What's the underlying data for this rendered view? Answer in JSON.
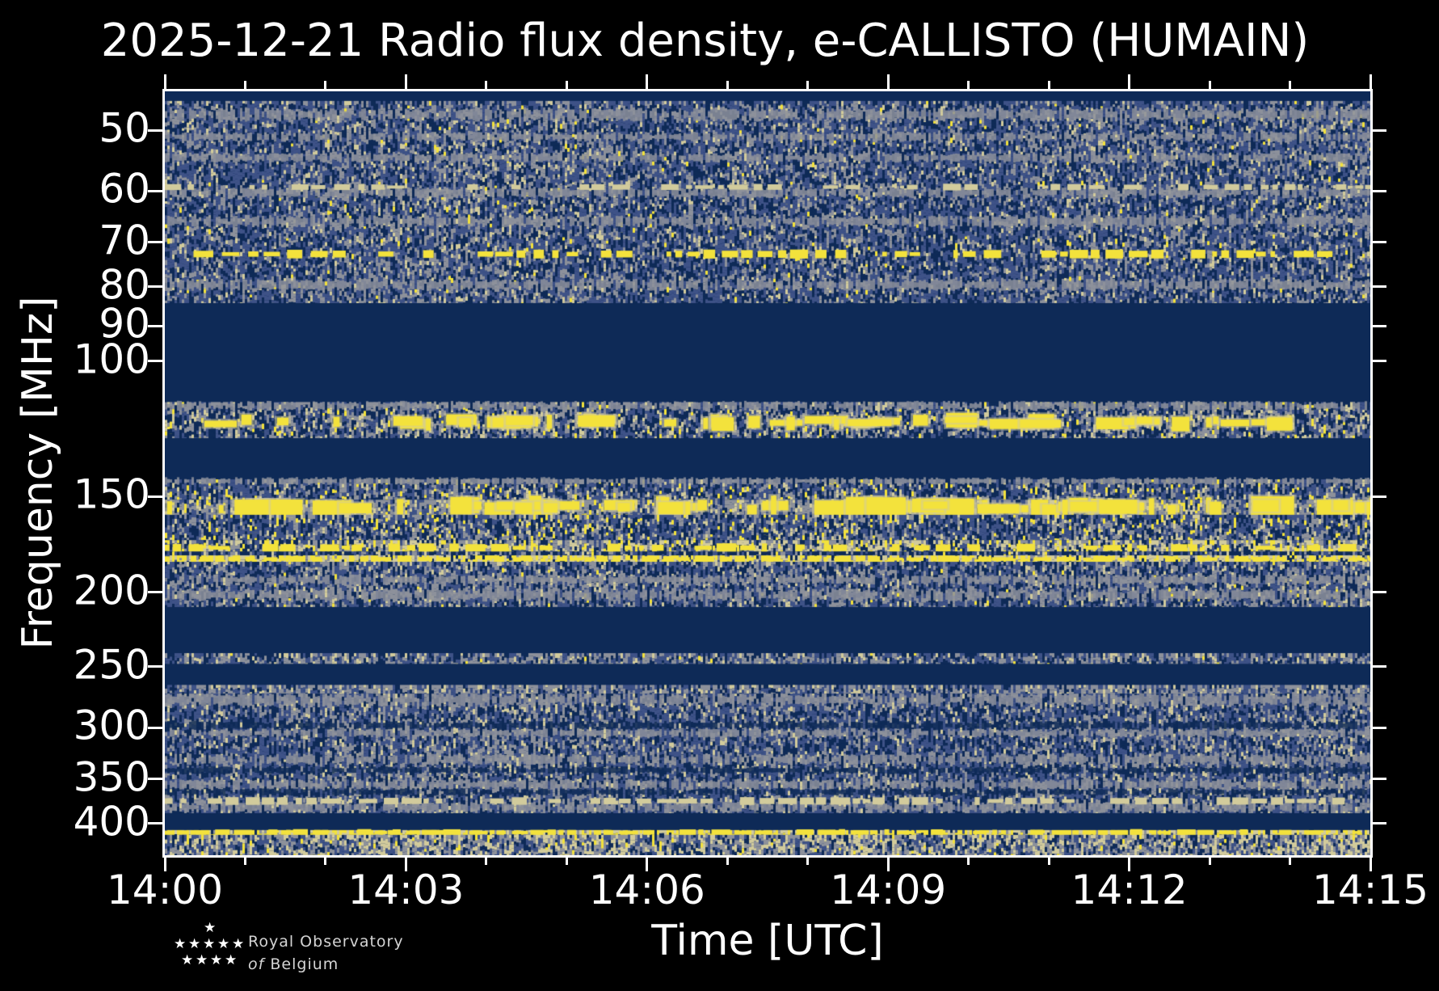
{
  "chart_data": {
    "type": "heatmap",
    "title": "2025-12-21 Radio flux density, e-CALLISTO (HUMAIN)",
    "xlabel": "Time [UTC]",
    "ylabel": "Frequency [MHz]",
    "x_major_ticks": [
      "14:00",
      "14:03",
      "14:06",
      "14:09",
      "14:12",
      "14:15"
    ],
    "x_span_minutes": 15,
    "x_minor_tick_every_minutes": 1,
    "y_scale": "log, inverted (low frequency at top)",
    "y_major_ticks_mhz": [
      50,
      60,
      70,
      80,
      90,
      100,
      150,
      200,
      250,
      300,
      350,
      400
    ],
    "freq_range_mhz": [
      44.5,
      440
    ],
    "grid": false,
    "legend": "none",
    "colormap": {
      "quiet_navy": "#0e2a57",
      "noise_blue": "#3e5287",
      "noise_gray": "#8d919b",
      "pale_yellow_tan": "#d2cb9c",
      "peak_yellow": "#f3e23c"
    },
    "bands": [
      {
        "f_low": 44.5,
        "f_high": 45.8,
        "desc": "quiet top edge",
        "w": {
          "navy": 1
        }
      },
      {
        "f_low": 45.8,
        "f_high": 84,
        "desc": "broadband HF noise 46-84 MHz with gray interference stripes",
        "w": {
          "navy": 0.3,
          "blue": 0.42,
          "gray": 0.21,
          "tan": 0.06,
          "yellow": 0.01
        },
        "stripes": [
          {
            "f": 47.7,
            "color": "gray",
            "h": 13
          },
          {
            "f": 51,
            "color": "gray",
            "h": 9
          },
          {
            "f": 54.3,
            "color": "gray",
            "h": 9
          },
          {
            "f": 60.3,
            "color": "gray",
            "h": 10
          },
          {
            "f": 65.7,
            "color": "gray",
            "h": 11
          },
          {
            "f": 79.5,
            "color": "gray",
            "h": 11
          }
        ],
        "lines": [
          {
            "f": 59.3,
            "color": "tan",
            "h": 6,
            "density": 0.55
          },
          {
            "f": 72.5,
            "color": "yellow",
            "h": 8,
            "density": 0.62
          }
        ]
      },
      {
        "f_low": 84,
        "f_high": 113,
        "desc": "quiet band (FM range blanked)",
        "w": {
          "navy": 1
        }
      },
      {
        "f_low": 113,
        "f_high": 126,
        "desc": "airband transmissions with bright yellow bursts ~120 MHz",
        "w": {
          "navy": 0.36,
          "blue": 0.27,
          "gray": 0.23,
          "tan": 0.1,
          "yellow": 0.04
        },
        "stripes": [
          {
            "f": 114.3,
            "color": "gray",
            "h": 9
          }
        ],
        "blobs": {
          "f": 120,
          "h": 13,
          "density": 0.55
        }
      },
      {
        "f_low": 126,
        "f_high": 142.5,
        "desc": "quiet band",
        "w": {
          "navy": 1
        }
      },
      {
        "f_low": 142.5,
        "f_high": 151.5,
        "desc": "VHF speckle with vertical yellow bursts ~145-150 MHz",
        "w": {
          "navy": 0.32,
          "blue": 0.38,
          "gray": 0.18,
          "tan": 0.07,
          "yellow": 0.05
        },
        "stripes": [
          {
            "f": 143.2,
            "color": "gray",
            "h": 7
          }
        ]
      },
      {
        "f_low": 151.5,
        "f_high": 158.5,
        "desc": "gray band with strong yellow blobs ~155 MHz",
        "w": {
          "navy": 0.12,
          "blue": 0.24,
          "gray": 0.42,
          "tan": 0.12,
          "yellow": 0.1
        },
        "blobs": {
          "f": 155,
          "h": 17,
          "density": 0.7
        }
      },
      {
        "f_low": 158.5,
        "f_high": 171,
        "desc": "speckled noise with yellow dashes 160-170 MHz",
        "w": {
          "navy": 0.3,
          "blue": 0.37,
          "gray": 0.19,
          "tan": 0.08,
          "yellow": 0.06
        }
      },
      {
        "f_low": 171,
        "f_high": 177,
        "desc": "dense yellow dashed emission line ~175 MHz",
        "w": {
          "navy": 0.2,
          "blue": 0.15,
          "gray": 0.25,
          "tan": 0.25,
          "yellow": 0.15
        },
        "lines": [
          {
            "f": 175,
            "color": "yellow",
            "h": 8,
            "density": 0.55
          }
        ]
      },
      {
        "f_low": 177,
        "f_high": 179,
        "desc": "narrow gap",
        "w": {
          "navy": 0.5,
          "blue": 0.3,
          "gray": 0.12,
          "tan": 0.06,
          "yellow": 0.02
        }
      },
      {
        "f_low": 179,
        "f_high": 182.5,
        "desc": "intense nearly continuous yellow line ~181 MHz",
        "w": {
          "navy": 0.1,
          "blue": 0.06,
          "gray": 0.12,
          "tan": 0.35,
          "yellow": 0.37
        },
        "lines": [
          {
            "f": 181,
            "color": "yellow",
            "h": 6,
            "density": 0.85
          }
        ]
      },
      {
        "f_low": 182.5,
        "f_high": 209,
        "desc": "moderate noise up to ~209 MHz",
        "w": {
          "navy": 0.3,
          "blue": 0.38,
          "gray": 0.24,
          "tan": 0.07,
          "yellow": 0.01
        },
        "stripes": [
          {
            "f": 192.5,
            "color": "gray",
            "h": 9
          },
          {
            "f": 201.5,
            "color": "gray",
            "h": 12
          }
        ]
      },
      {
        "f_low": 209,
        "f_high": 240,
        "desc": "quiet band",
        "w": {
          "navy": 1
        }
      },
      {
        "f_low": 240,
        "f_high": 248,
        "desc": "narrow noise stripe ~244 MHz",
        "w": {
          "navy": 0.22,
          "blue": 0.34,
          "gray": 0.32,
          "tan": 0.11,
          "yellow": 0.01
        }
      },
      {
        "f_low": 248,
        "f_high": 264,
        "desc": "quiet band",
        "w": {
          "navy": 1
        }
      },
      {
        "f_low": 264,
        "f_high": 271,
        "desc": "gray stripe ~268 MHz",
        "w": {
          "navy": 0.15,
          "blue": 0.3,
          "gray": 0.43,
          "tan": 0.12
        }
      },
      {
        "f_low": 271,
        "f_high": 388,
        "desc": "broadband UHF noise 271-388 MHz with internal stripes",
        "w": {
          "navy": 0.28,
          "blue": 0.42,
          "gray": 0.23,
          "tan": 0.07
        },
        "stripes": [
          {
            "f": 276,
            "color": "gray",
            "h": 12
          },
          {
            "f": 305,
            "color": "gray",
            "h": 8
          },
          {
            "f": 330,
            "color": "gray",
            "h": 10
          },
          {
            "f": 356,
            "color": "gray",
            "h": 10
          },
          {
            "f": 381,
            "color": "gray",
            "h": 10
          },
          {
            "f": 298,
            "color": "dark",
            "h": 8
          },
          {
            "f": 341,
            "color": "dark",
            "h": 7
          },
          {
            "f": 364,
            "color": "dark",
            "h": 7
          }
        ],
        "lines": [
          {
            "f": 374,
            "color": "tan",
            "h": 7,
            "density": 0.85
          }
        ]
      },
      {
        "f_low": 388,
        "f_high": 408,
        "desc": "quiet band",
        "w": {
          "navy": 1
        }
      },
      {
        "f_low": 408,
        "f_high": 414,
        "desc": "bright yellow dashed line ~410 MHz",
        "w": {
          "navy": 0.1,
          "blue": 0.05,
          "gray": 0.1,
          "tan": 0.3,
          "yellow": 0.45
        },
        "lines": [
          {
            "f": 411,
            "color": "yellow",
            "h": 6,
            "density": 0.8
          }
        ]
      },
      {
        "f_low": 414,
        "f_high": 440,
        "desc": "dense tan/gray noise at bottom edge",
        "w": {
          "navy": 0.16,
          "blue": 0.24,
          "gray": 0.28,
          "tan": 0.28,
          "yellow": 0.04
        }
      }
    ]
  },
  "logo": {
    "line1": "Royal Observatory",
    "line2_word1": "of",
    "line2_word2": "Belgium"
  }
}
